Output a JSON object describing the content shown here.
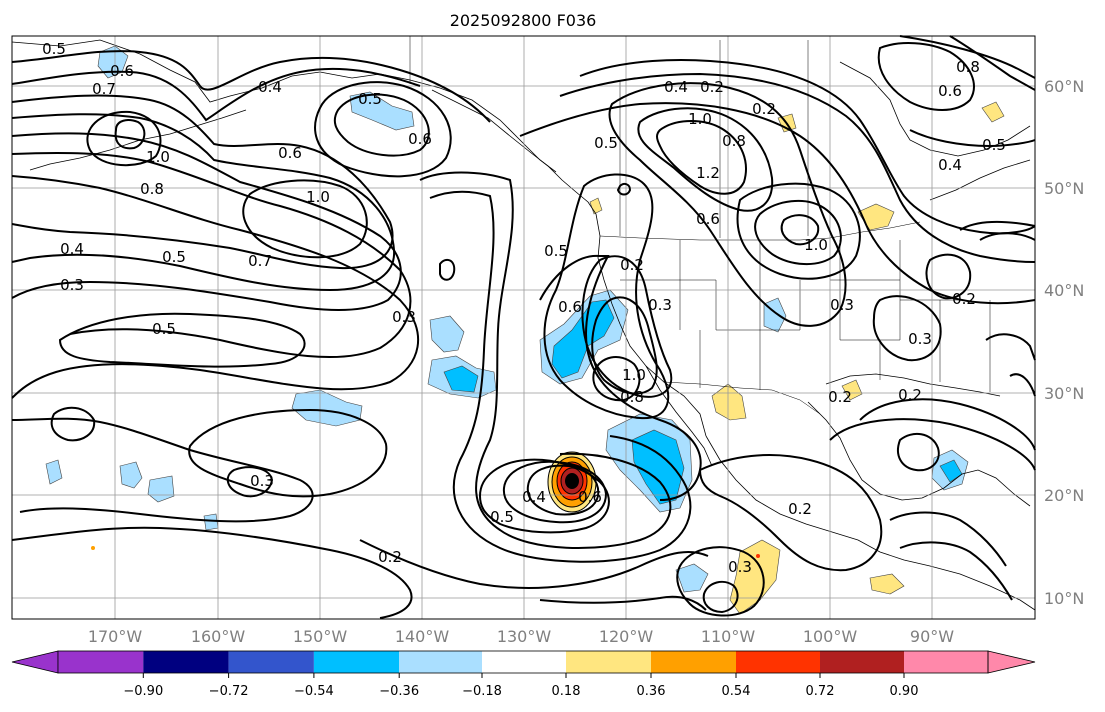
{
  "title": "2025092800 F036",
  "longitude_labels": [
    "170°W",
    "160°W",
    "150°W",
    "140°W",
    "130°W",
    "120°W",
    "110°W",
    "100°W",
    "90°W"
  ],
  "latitude_labels": [
    "60°N",
    "50°N",
    "40°N",
    "30°N",
    "20°N",
    "10°N"
  ],
  "colorbar": {
    "tick_labels": [
      "−0.90",
      "−0.72",
      "−0.54",
      "−0.36",
      "−0.18",
      "0.18",
      "0.36",
      "0.54",
      "0.72",
      "0.90"
    ],
    "colors": [
      "#9933cc",
      "#000080",
      "#3355cc",
      "#00bfff",
      "#aadfff",
      "#ffffff",
      "#ffe680",
      "#ffa000",
      "#ff3300",
      "#b02020",
      "#ff88aa"
    ]
  },
  "contour_labels": [
    {
      "text": "0.5"
    },
    {
      "text": "0.6"
    },
    {
      "text": "0.7"
    },
    {
      "text": "0.4"
    },
    {
      "text": "0.5"
    },
    {
      "text": "0.6"
    },
    {
      "text": "0.6"
    },
    {
      "text": "1.0"
    },
    {
      "text": "0.8"
    },
    {
      "text": "1.0"
    },
    {
      "text": "0.5"
    },
    {
      "text": "0.7"
    },
    {
      "text": "0.4"
    },
    {
      "text": "0.3"
    },
    {
      "text": "0.5"
    },
    {
      "text": "0.3"
    },
    {
      "text": "0.5"
    },
    {
      "text": "0.4"
    },
    {
      "text": "0.2"
    },
    {
      "text": "1.0"
    },
    {
      "text": "0.8"
    },
    {
      "text": "1.2"
    },
    {
      "text": "0.5"
    },
    {
      "text": "0.6"
    },
    {
      "text": "0.2"
    },
    {
      "text": "0.8"
    },
    {
      "text": "0.6"
    },
    {
      "text": "0.5"
    },
    {
      "text": "0.4"
    },
    {
      "text": "1.0"
    },
    {
      "text": "0.3"
    },
    {
      "text": "0.2"
    },
    {
      "text": "0.6"
    },
    {
      "text": "0.8"
    },
    {
      "text": "1.0"
    },
    {
      "text": "0.2"
    },
    {
      "text": "0.3"
    },
    {
      "text": "0.3"
    },
    {
      "text": "0.2"
    },
    {
      "text": "0.2"
    },
    {
      "text": "0.5"
    },
    {
      "text": "0.4"
    },
    {
      "text": "0.6"
    },
    {
      "text": "0.2"
    },
    {
      "text": "0.3"
    },
    {
      "text": "0.2"
    },
    {
      "text": "0.3"
    }
  ]
}
